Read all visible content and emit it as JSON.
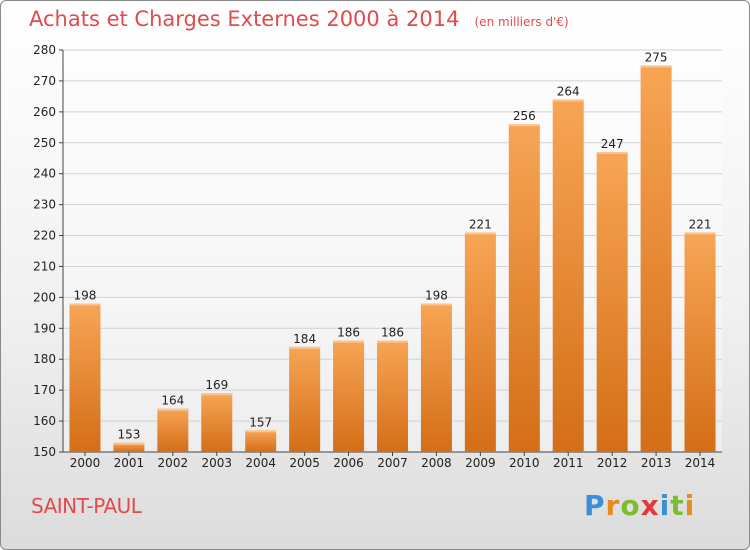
{
  "title": "Achats et Charges Externes 2000 à 2014",
  "subtitle": "(en milliers d'€)",
  "commune": "SAINT-PAUL",
  "logo": {
    "text": "Proxiti",
    "letters": [
      "P",
      "r",
      "o",
      "x",
      "i",
      "t",
      "i"
    ],
    "colors": [
      "#3a8fd6",
      "#e98a1f",
      "#7dbb2f",
      "#e23a3a",
      "#3a8fd6",
      "#7dbb2f",
      "#e98a1f"
    ]
  },
  "colors": {
    "bar_light": "#f7a555",
    "bar_dark": "#d46e17",
    "title": "#e14b4b"
  },
  "chart_data": {
    "type": "bar",
    "title": "Achats et Charges Externes 2000 à 2014",
    "subtitle": "(en milliers d'€)",
    "categories": [
      "2000",
      "2001",
      "2002",
      "2003",
      "2004",
      "2005",
      "2006",
      "2007",
      "2008",
      "2009",
      "2010",
      "2011",
      "2012",
      "2013",
      "2014"
    ],
    "values": [
      198,
      153,
      164,
      169,
      157,
      184,
      186,
      186,
      198,
      221,
      256,
      264,
      247,
      275,
      221
    ],
    "ylim": [
      150,
      280
    ],
    "yticks": [
      150,
      160,
      170,
      180,
      190,
      200,
      210,
      220,
      230,
      240,
      250,
      260,
      270,
      280
    ],
    "grid": true,
    "legend": "none"
  }
}
